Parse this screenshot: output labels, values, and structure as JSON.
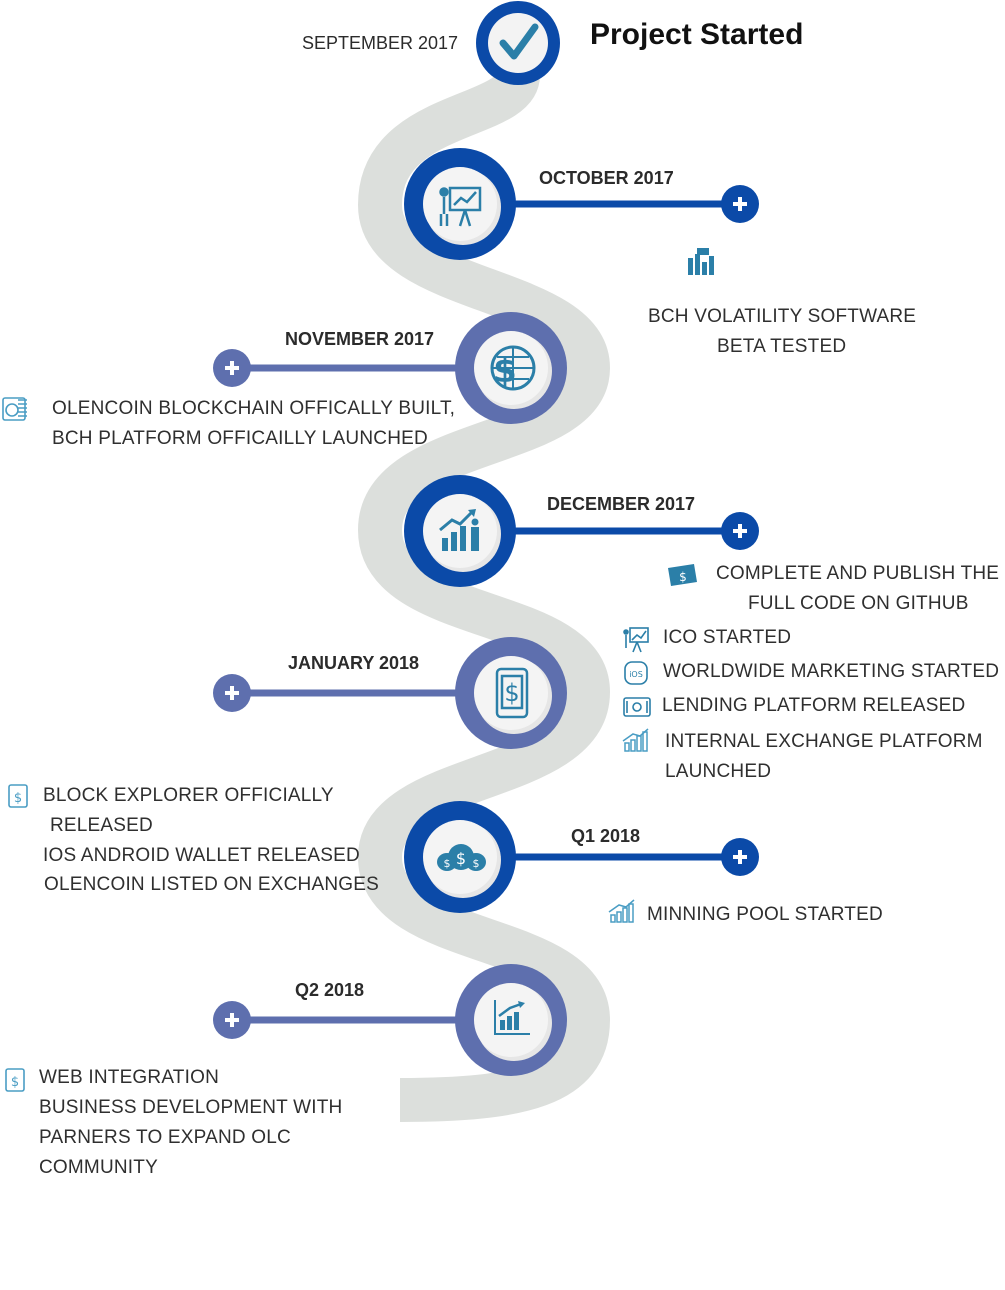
{
  "colors": {
    "dark_blue": "#0b4aa8",
    "mid_blue": "#5e6fae",
    "road": "#dcdfdc",
    "icon": "#2b7fa8",
    "text": "#2f2f2f"
  },
  "title": "Project Started",
  "milestones": [
    {
      "date": "SEPTEMBER 2017",
      "icon": "check-icon"
    },
    {
      "date": "OCTOBER 2017",
      "icon": "presentation-board-icon",
      "items": [
        {
          "icon": "bar-chart-icon",
          "lines": [
            "BCH VOLATILITY SOFTWARE",
            "BETA TESTED"
          ]
        }
      ]
    },
    {
      "date": "NOVEMBER 2017",
      "icon": "dollar-globe-icon",
      "items": [
        {
          "icon": "coins-icon",
          "lines": [
            "OLENCOIN BLOCKCHAIN OFFICALLY BUILT,",
            "BCH PLATFORM OFFICAILLY LAUNCHED"
          ]
        }
      ]
    },
    {
      "date": "DECEMBER 2017",
      "icon": "growth-person-icon",
      "items": [
        {
          "icon": "money-bills-icon",
          "lines": [
            "COMPLETE AND PUBLISH THE",
            "FULL CODE ON GITHUB"
          ]
        }
      ]
    },
    {
      "date": "JANUARY 2018",
      "icon": "mobile-dollar-icon",
      "items": [
        {
          "icon": "presentation-icon",
          "lines": [
            "ICO STARTED"
          ]
        },
        {
          "icon": "ios-icon",
          "lines": [
            "WORLDWIDE MARKETING STARTED"
          ]
        },
        {
          "icon": "banknote-icon",
          "lines": [
            "LENDING PLATFORM RELEASED"
          ]
        },
        {
          "icon": "growth-chart-icon",
          "lines": [
            "INTERNAL EXCHANGE PLATFORM",
            "LAUNCHED"
          ]
        }
      ]
    },
    {
      "date": "Q1 2018",
      "icon": "money-bags-icon",
      "items": [
        {
          "icon": "dollar-tablet-icon",
          "lines": [
            "BLOCK EXPLORER OFFICIALLY",
            "RELEASED",
            "IOS ANDROID WALLET RELEASED",
            "OLENCOIN LISTED ON EXCHANGES"
          ]
        },
        {
          "icon": "growth-chart-icon",
          "lines": [
            "MINNING POOL STARTED"
          ]
        }
      ]
    },
    {
      "date": "Q2 2018",
      "icon": "analytics-chart-icon",
      "items": [
        {
          "icon": "dollar-tablet-icon",
          "lines": [
            "WEB INTEGRATION",
            "BUSINESS DEVELOPMENT WITH",
            "PARNERS TO EXPAND OLC",
            "COMMUNITY"
          ]
        }
      ]
    }
  ]
}
